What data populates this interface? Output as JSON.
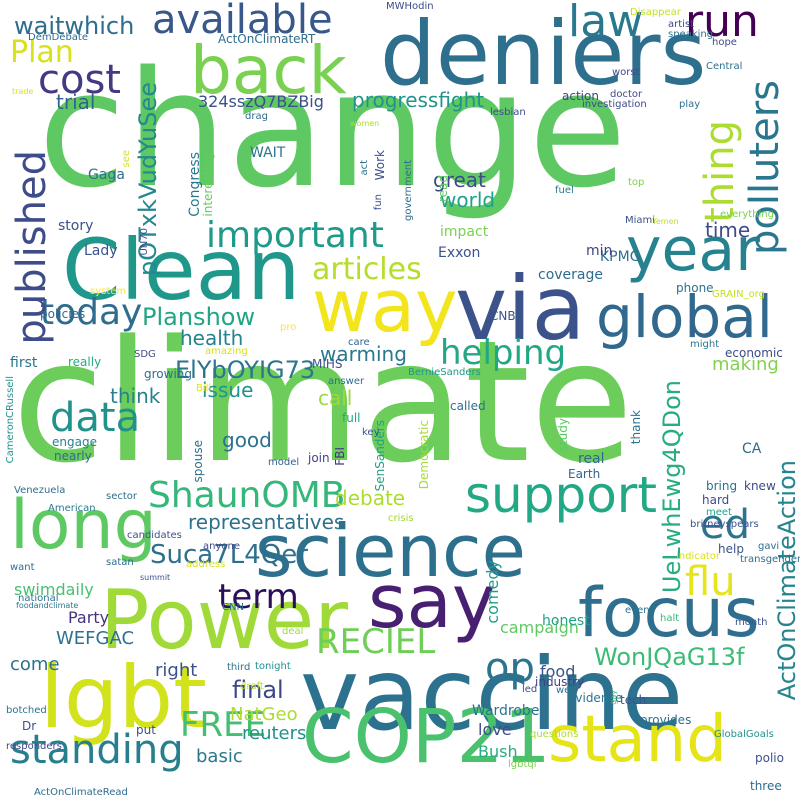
{
  "words": [
    {
      "text": "change",
      "color": "#5ec962"
    },
    {
      "text": "climate",
      "color": "#6ccd5a"
    },
    {
      "text": "vaccine",
      "color": "#2c728e"
    },
    {
      "text": "deniers",
      "color": "#2e6f8e"
    },
    {
      "text": "Clean",
      "color": "#1f988b"
    },
    {
      "text": "via",
      "color": "#3b528b"
    },
    {
      "text": "Power",
      "color": "#a0da39"
    },
    {
      "text": "science",
      "color": "#2d708e"
    },
    {
      "text": "lgbt",
      "color": "#d2e21b"
    },
    {
      "text": "COP21",
      "color": "#4ac16d"
    },
    {
      "text": "way",
      "color": "#f2e51d"
    },
    {
      "text": "back",
      "color": "#7ad151"
    },
    {
      "text": "say",
      "color": "#482071"
    },
    {
      "text": "long",
      "color": "#5ec962"
    },
    {
      "text": "focus",
      "color": "#2e6e8e"
    },
    {
      "text": "stand",
      "color": "#e5e419"
    },
    {
      "text": "global",
      "color": "#31688e"
    },
    {
      "text": "year",
      "color": "#26828e"
    },
    {
      "text": "support",
      "color": "#22a884"
    },
    {
      "text": "available",
      "color": "#38588c"
    },
    {
      "text": "important",
      "color": "#1f9a8a"
    },
    {
      "text": "standing",
      "color": "#277f8e"
    },
    {
      "text": "articles",
      "color": "#b5de2b"
    },
    {
      "text": "ShaunOMB",
      "color": "#35b779"
    },
    {
      "text": "data",
      "color": "#21918c"
    },
    {
      "text": "cost",
      "color": "#443983"
    },
    {
      "text": "law",
      "color": "#2a788e"
    },
    {
      "text": "run",
      "color": "#440154"
    },
    {
      "text": "today",
      "color": "#2f6c8e"
    },
    {
      "text": "published",
      "color": "#3e4c8a"
    },
    {
      "text": "polluters",
      "color": "#2a768e"
    },
    {
      "text": "thing",
      "color": "#addc30"
    },
    {
      "text": "Plan",
      "color": "#d8e219"
    },
    {
      "text": "helping",
      "color": "#22a785"
    },
    {
      "text": "RECIEL",
      "color": "#6ece58"
    },
    {
      "text": "FREE",
      "color": "#44bf70"
    },
    {
      "text": "flu",
      "color": "#e7e419"
    },
    {
      "text": "op",
      "color": "#2c738e"
    },
    {
      "text": "ed",
      "color": "#2b748e"
    },
    {
      "text": "term",
      "color": "#2a0f59"
    },
    {
      "text": "Suca7L4Qer",
      "color": "#2e6f8e"
    },
    {
      "text": "Planshow",
      "color": "#21a685"
    },
    {
      "text": "ElYbOYIG73",
      "color": "#2b758e"
    },
    {
      "text": "ActOnClimateAction",
      "color": "#25848e"
    },
    {
      "text": "UeLwhEwg4QDon",
      "color": "#27ad81"
    },
    {
      "text": "WonJQaG13f",
      "color": "#3bbb75"
    },
    {
      "text": "final",
      "color": "#3f4788"
    },
    {
      "text": "pOTxkVudYuSee",
      "color": "#23898e"
    },
    {
      "text": "waitwhich",
      "color": "#2e6d8e"
    },
    {
      "text": "progressfight",
      "color": "#20938c"
    },
    {
      "text": "representatives",
      "color": "#2d718e"
    },
    {
      "text": "324sszQ7BZBig",
      "color": "#3b518b"
    },
    {
      "text": "warming",
      "color": "#2a788e"
    },
    {
      "text": "health",
      "color": "#26828e"
    },
    {
      "text": "debate",
      "color": "#addc30"
    },
    {
      "text": "world",
      "color": "#1fa188"
    },
    {
      "text": "think",
      "color": "#26828e"
    },
    {
      "text": "great",
      "color": "#3e4989"
    },
    {
      "text": "trial",
      "color": "#33638d"
    },
    {
      "text": "good",
      "color": "#2c718e"
    },
    {
      "text": "call",
      "color": "#9bd93c"
    },
    {
      "text": "issue",
      "color": "#1f948c"
    },
    {
      "text": "making",
      "color": "#7fd34e"
    },
    {
      "text": "time",
      "color": "#3e4a89"
    },
    {
      "text": "NatGeo",
      "color": "#addc30"
    },
    {
      "text": "reuters",
      "color": "#21918c"
    },
    {
      "text": "WEFGAC",
      "color": "#2c728e"
    },
    {
      "text": "Party",
      "color": "#46327e"
    },
    {
      "text": "right",
      "color": "#3b528b"
    },
    {
      "text": "basic",
      "color": "#2a788e"
    },
    {
      "text": "come",
      "color": "#2d708e"
    },
    {
      "text": "swimdaily",
      "color": "#48c16e"
    },
    {
      "text": "campaign",
      "color": "#5ec962"
    },
    {
      "text": "comedy",
      "color": "#1f9e89"
    },
    {
      "text": "honest",
      "color": "#1fa187"
    },
    {
      "text": "food",
      "color": "#3b528b"
    },
    {
      "text": "love",
      "color": "#3e4c8a"
    },
    {
      "text": "Bush",
      "color": "#27ad81"
    },
    {
      "text": "Wardrobe",
      "color": "#2b748e"
    },
    {
      "text": "KPMG",
      "color": "#2c718e"
    },
    {
      "text": "coverage",
      "color": "#2f6b8e"
    },
    {
      "text": "Exxon",
      "color": "#3b528b"
    },
    {
      "text": "impact",
      "color": "#7ad151"
    },
    {
      "text": "min",
      "color": "#414487"
    },
    {
      "text": "WAIT",
      "color": "#2b758e"
    },
    {
      "text": "action",
      "color": "#3f4788"
    },
    {
      "text": "Congress",
      "color": "#2a788e"
    },
    {
      "text": "interesting",
      "color": "#65cb5e"
    },
    {
      "text": "story",
      "color": "#3b528b"
    },
    {
      "text": "Lady",
      "color": "#3a548c"
    },
    {
      "text": "Gaga",
      "color": "#2c728e"
    },
    {
      "text": "first",
      "color": "#2a768e"
    },
    {
      "text": "really",
      "color": "#25ab82"
    },
    {
      "text": "policies",
      "color": "#31688e"
    },
    {
      "text": "growing",
      "color": "#2e6d8e"
    },
    {
      "text": "SDG",
      "color": "#3e4c8a"
    },
    {
      "text": "amazing",
      "color": "#d5e21a"
    },
    {
      "text": "Bill",
      "color": "#e2e418"
    },
    {
      "text": "answer",
      "color": "#2f6c8e"
    },
    {
      "text": "MIHS",
      "color": "#3b528b"
    },
    {
      "text": "care",
      "color": "#32658e"
    },
    {
      "text": "full",
      "color": "#22a884"
    },
    {
      "text": "FBI",
      "color": "#443983"
    },
    {
      "text": "join",
      "color": "#414487"
    },
    {
      "text": "model",
      "color": "#355f8d"
    },
    {
      "text": "nearly",
      "color": "#2f6b8e"
    },
    {
      "text": "engage",
      "color": "#26828e"
    },
    {
      "text": "spouse",
      "color": "#2c718e"
    },
    {
      "text": "Democratic",
      "color": "#a8db34"
    },
    {
      "text": "SenSanders",
      "color": "#1fa188"
    },
    {
      "text": "study",
      "color": "#5ac864"
    },
    {
      "text": "real",
      "color": "#31688e"
    },
    {
      "text": "Earth",
      "color": "#32658e"
    },
    {
      "text": "called",
      "color": "#2f6c8e"
    },
    {
      "text": "key",
      "color": "#3b528b"
    },
    {
      "text": "BernieSanders",
      "color": "#1f968b"
    },
    {
      "text": "thank",
      "color": "#2c728e"
    },
    {
      "text": "economic",
      "color": "#3e4a89"
    },
    {
      "text": "might",
      "color": "#2a768e"
    },
    {
      "text": "phone",
      "color": "#2c728e"
    },
    {
      "text": "GRAIN_org",
      "color": "#c2df23"
    },
    {
      "text": "CNBC",
      "color": "#3b528b"
    },
    {
      "text": "pro",
      "color": "#fde725"
    },
    {
      "text": "CA",
      "color": "#2f6b8e"
    },
    {
      "text": "knew",
      "color": "#3e4a89"
    },
    {
      "text": "bring",
      "color": "#2c718e"
    },
    {
      "text": "hard",
      "color": "#3e4c8a"
    },
    {
      "text": "meet",
      "color": "#1fa188"
    },
    {
      "text": "britneyspears",
      "color": "#3b528b"
    },
    {
      "text": "crisis",
      "color": "#a2da37"
    },
    {
      "text": "help",
      "color": "#3b528b"
    },
    {
      "text": "gavi",
      "color": "#2f6c8e"
    },
    {
      "text": "indicator",
      "color": "#d8e219"
    },
    {
      "text": "transgender",
      "color": "#2f6c8e"
    },
    {
      "text": "halt",
      "color": "#37b878"
    },
    {
      "text": "event",
      "color": "#2c728e"
    },
    {
      "text": "month",
      "color": "#3a548c"
    },
    {
      "text": "industry",
      "color": "#433e85"
    },
    {
      "text": "evidence",
      "color": "#2a768e"
    },
    {
      "text": "tech",
      "color": "#3b528b"
    },
    {
      "text": "gay",
      "color": "#4cc26c"
    },
    {
      "text": "wef",
      "color": "#2d708e"
    },
    {
      "text": "led",
      "color": "#3e4c8a"
    },
    {
      "text": "questions",
      "color": "#addc30"
    },
    {
      "text": "provides",
      "color": "#2c718e"
    },
    {
      "text": "GlobalGoals",
      "color": "#21918c"
    },
    {
      "text": "polio",
      "color": "#3b528b"
    },
    {
      "text": "lgbtqi",
      "color": "#7ad151"
    },
    {
      "text": "three",
      "color": "#2f6c8e"
    },
    {
      "text": "third",
      "color": "#2c728e"
    },
    {
      "text": "tonight",
      "color": "#21918c"
    },
    {
      "text": "draft",
      "color": "#b5de2b"
    },
    {
      "text": "deal",
      "color": "#a0da39"
    },
    {
      "text": "CNN",
      "color": "#2c728e"
    },
    {
      "text": "address",
      "color": "#d8e219"
    },
    {
      "text": "summit",
      "color": "#3b528b"
    },
    {
      "text": "anyone",
      "color": "#3e4a89"
    },
    {
      "text": "candidates",
      "color": "#3b528b"
    },
    {
      "text": "satan",
      "color": "#2f6c8e"
    },
    {
      "text": "national",
      "color": "#2c728e"
    },
    {
      "text": "foodandclimate",
      "color": "#2a768e"
    },
    {
      "text": "sector",
      "color": "#2f6c8e"
    },
    {
      "text": "American",
      "color": "#2a788e"
    },
    {
      "text": "Venezuela",
      "color": "#2e6f8e"
    },
    {
      "text": "want",
      "color": "#2d708e"
    },
    {
      "text": "Dr",
      "color": "#3b528b"
    },
    {
      "text": "put",
      "color": "#3e4c8a"
    },
    {
      "text": "responders",
      "color": "#3e4a89"
    },
    {
      "text": "botched",
      "color": "#2c728e"
    },
    {
      "text": "ActOnClimateRead",
      "color": "#2f6c8e"
    },
    {
      "text": "CameronCRussell",
      "color": "#21918c"
    },
    {
      "text": "system",
      "color": "#fde725"
    },
    {
      "text": "UN70",
      "color": "#3e4c8a"
    },
    {
      "text": "trade",
      "color": "#d8e219"
    },
    {
      "text": "DemDebate",
      "color": "#2f6c8e"
    },
    {
      "text": "ActOnClimateRT",
      "color": "#2f6c8e"
    },
    {
      "text": "MWHodin",
      "color": "#3e4a89"
    },
    {
      "text": "Disappear",
      "color": "#c2df23"
    },
    {
      "text": "artist",
      "color": "#3e4a89"
    },
    {
      "text": "speaking",
      "color": "#2c728e"
    },
    {
      "text": "hope",
      "color": "#3e4c8a"
    },
    {
      "text": "worst",
      "color": "#3e4a89"
    },
    {
      "text": "Central",
      "color": "#2c728e"
    },
    {
      "text": "doctor",
      "color": "#3e4a89"
    },
    {
      "text": "investigation",
      "color": "#3e4a89"
    },
    {
      "text": "play",
      "color": "#2c728e"
    },
    {
      "text": "lesbian",
      "color": "#3e4c8a"
    },
    {
      "text": "women",
      "color": "#addc30"
    },
    {
      "text": "drag",
      "color": "#2f6c8e"
    },
    {
      "text": "see",
      "color": "#d8e219"
    },
    {
      "text": "act",
      "color": "#2c728e"
    },
    {
      "text": "Work",
      "color": "#3e4c8a"
    },
    {
      "text": "fun",
      "color": "#3e4c8a"
    },
    {
      "text": "government",
      "color": "#2f6c8e"
    },
    {
      "text": "read",
      "color": "#5ec962"
    },
    {
      "text": "fuel",
      "color": "#2a768e"
    },
    {
      "text": "top",
      "color": "#7ad151"
    },
    {
      "text": "Yemen",
      "color": "#c2df23"
    },
    {
      "text": "Miami",
      "color": "#3b528b"
    },
    {
      "text": "everything",
      "color": "#7ad151"
    }
  ]
}
